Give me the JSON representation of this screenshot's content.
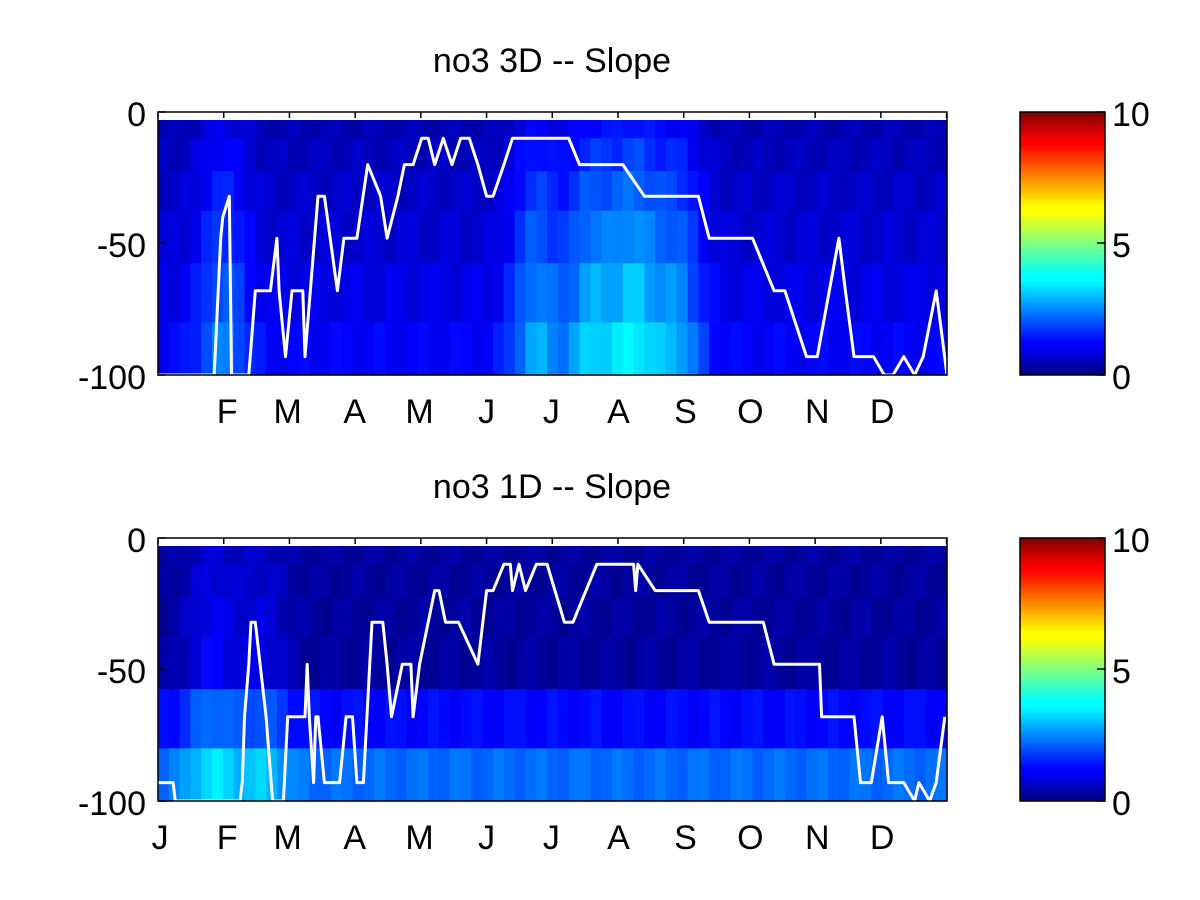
{
  "chart_data": [
    {
      "type": "heatmap",
      "title": "no3 3D   -- Slope",
      "ylim": [
        -100,
        0
      ],
      "yticks": [
        "0",
        "-50",
        "-100"
      ],
      "xticks": [
        "F",
        "M",
        "A",
        "M",
        "J",
        "J",
        "A",
        "S",
        "O",
        "N",
        "D"
      ],
      "xtick_days": [
        32,
        60,
        91,
        121,
        152,
        182,
        213,
        244,
        274,
        305,
        335
      ],
      "colorbar": {
        "range": [
          0,
          10
        ],
        "ticks": [
          "0",
          "5",
          "10"
        ],
        "colormap": "jet"
      },
      "depth_bands": [
        -5,
        -15,
        -30,
        -45,
        -70,
        -90
      ],
      "bg_values": [
        0.5,
        0.6,
        0.7,
        0.8,
        1.0,
        1.2
      ],
      "hot_spots": [
        {
          "day": 30,
          "value": 1.8
        },
        {
          "day": 175,
          "value": 2.2
        },
        {
          "day": 200,
          "value": 2.5
        },
        {
          "day": 220,
          "value": 2.8
        },
        {
          "day": 240,
          "value": 2.2
        }
      ],
      "line": {
        "color": "#ffffff",
        "x": [
          0,
          12,
          26,
          29,
          30,
          33,
          34,
          36,
          42,
          45,
          47,
          52,
          55,
          56,
          59,
          62,
          64,
          67,
          68,
          74,
          77,
          83,
          86,
          92,
          97,
          103,
          106,
          111,
          114,
          118,
          122,
          125,
          128,
          132,
          136,
          140,
          144,
          148,
          152,
          155,
          160,
          164,
          170,
          176,
          185,
          190,
          195,
          200,
          210,
          215,
          225,
          230,
          245,
          250,
          255,
          265,
          270,
          275,
          285,
          290,
          300,
          305,
          315,
          318,
          322,
          325,
          331,
          336,
          340,
          345,
          350,
          354,
          360,
          365
        ],
        "y": [
          -100,
          -100,
          -100,
          -48,
          -40,
          -32,
          -100,
          -100,
          -100,
          -68,
          -68,
          -68,
          -48,
          -68,
          -93,
          -68,
          -68,
          -68,
          -93,
          -32,
          -32,
          -68,
          -48,
          -48,
          -20,
          -32,
          -48,
          -32,
          -20,
          -20,
          -10,
          -10,
          -20,
          -10,
          -20,
          -10,
          -10,
          -20,
          -32,
          -32,
          -20,
          -10,
          -10,
          -10,
          -10,
          -10,
          -20,
          -20,
          -20,
          -20,
          -32,
          -32,
          -32,
          -32,
          -48,
          -48,
          -48,
          -48,
          -68,
          -68,
          -93,
          -93,
          -48,
          -68,
          -93,
          -93,
          -93,
          -100,
          -100,
          -93,
          -100,
          -93,
          -68,
          -100
        ]
      }
    },
    {
      "type": "heatmap",
      "title": "no3 1D   -- Slope",
      "ylim": [
        -100,
        0
      ],
      "yticks": [
        "0",
        "-50",
        "-100"
      ],
      "xticks": [
        "J",
        "F",
        "M",
        "A",
        "M",
        "J",
        "J",
        "A",
        "S",
        "O",
        "N",
        "D"
      ],
      "xtick_days": [
        1,
        32,
        60,
        91,
        121,
        152,
        182,
        213,
        244,
        274,
        305,
        335
      ],
      "colorbar": {
        "range": [
          0,
          10
        ],
        "ticks": [
          "0",
          "5",
          "10"
        ],
        "colormap": "jet"
      },
      "depth_bands": [
        -5,
        -15,
        -30,
        -45,
        -70,
        -90
      ],
      "bg_values": [
        0.3,
        0.3,
        0.3,
        0.3,
        1.3,
        2.3
      ],
      "hot_spots": [
        {
          "day": 25,
          "value": 1.5
        },
        {
          "day": 48,
          "value": 1.2
        }
      ],
      "line": {
        "color": "#ffffff",
        "x": [
          0,
          7,
          8,
          38,
          39,
          40,
          42,
          43,
          45,
          50,
          53,
          58,
          60,
          63,
          68,
          69,
          70,
          72,
          73,
          74,
          77,
          80,
          84,
          87,
          88,
          90,
          92,
          95,
          99,
          101,
          104,
          106,
          108,
          113,
          117,
          118,
          121,
          128,
          130,
          133,
          139,
          148,
          152,
          155,
          160,
          163,
          164,
          167,
          170,
          175,
          180,
          188,
          192,
          203,
          215,
          219,
          220,
          221,
          222,
          230,
          240,
          245,
          250,
          255,
          270,
          273,
          280,
          285,
          290,
          305,
          306,
          307,
          309,
          320,
          322,
          325,
          330,
          335,
          338,
          345,
          350,
          352,
          357,
          360,
          364
        ],
        "y": [
          -93,
          -93,
          -100,
          -100,
          -93,
          -68,
          -48,
          -32,
          -32,
          -68,
          -100,
          -100,
          -68,
          -68,
          -68,
          -48,
          -68,
          -93,
          -68,
          -68,
          -93,
          -93,
          -93,
          -68,
          -68,
          -68,
          -93,
          -93,
          -32,
          -32,
          -32,
          -48,
          -68,
          -48,
          -48,
          -68,
          -48,
          -20,
          -20,
          -32,
          -32,
          -48,
          -20,
          -20,
          -10,
          -10,
          -20,
          -10,
          -20,
          -10,
          -10,
          -32,
          -32,
          -10,
          -10,
          -10,
          -10,
          -20,
          -10,
          -20,
          -20,
          -20,
          -20,
          -32,
          -32,
          -32,
          -32,
          -48,
          -48,
          -48,
          -48,
          -68,
          -68,
          -68,
          -68,
          -93,
          -93,
          -68,
          -93,
          -93,
          -100,
          -93,
          -100,
          -93,
          -68
        ]
      }
    }
  ]
}
